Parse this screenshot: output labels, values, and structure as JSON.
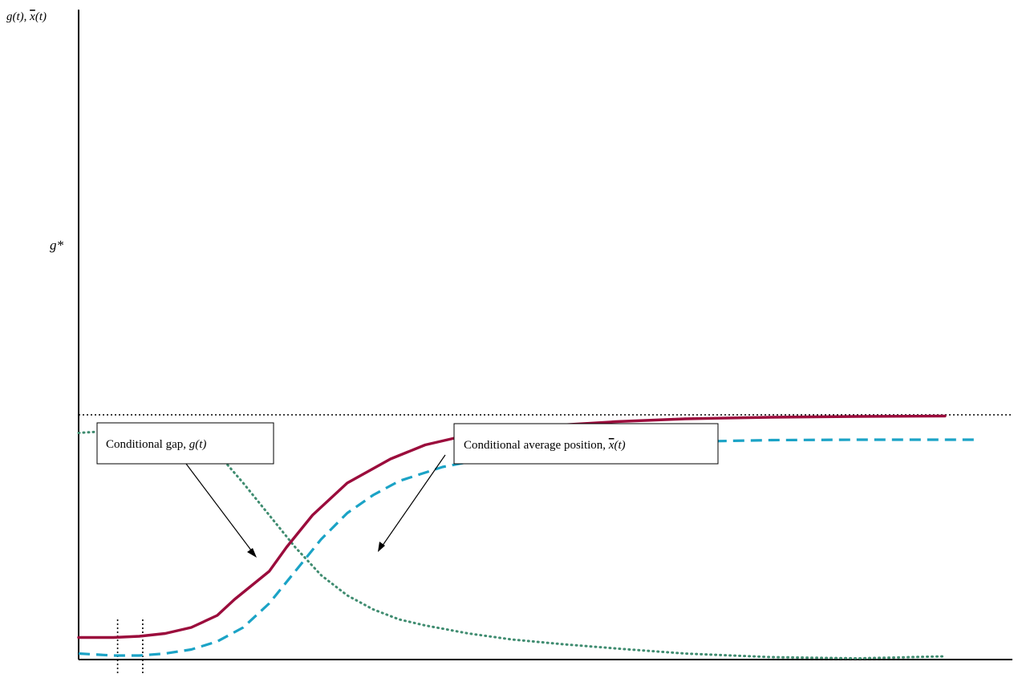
{
  "chart_data": {
    "type": "line",
    "y_axis_label": {
      "g": "g(t)",
      "sep": ", ",
      "xbar": "x",
      "paren": "(t)"
    },
    "g_star_label": "g*",
    "annotations": {
      "gap": {
        "prefix": "Conditional gap, ",
        "italic": "g(t)"
      },
      "avg": {
        "prefix": "Conditional average position, ",
        "xbar": "x",
        "paren": "(t)"
      }
    },
    "xlim": [
      0,
      100
    ],
    "ylim": [
      0,
      100
    ],
    "g_star": 61,
    "t_markers": [
      4.5,
      7.4
    ],
    "grid": false,
    "legend": "none",
    "colors": {
      "gap": "#9b0c3c",
      "avg": "#1ba3c6",
      "dotted": "#3f8c70",
      "axes": "#000000"
    },
    "series": [
      {
        "key": "gap",
        "style": "solid",
        "x": [
          0,
          4,
          7,
          10,
          13,
          16,
          18,
          22,
          24,
          27,
          31,
          36,
          40,
          45,
          50,
          56,
          62,
          70,
          80,
          90,
          100
        ],
        "y": [
          5.5,
          5.5,
          5.8,
          6.5,
          8,
          11,
          15,
          22,
          28,
          36,
          44,
          50,
          53.5,
          56,
          57.5,
          58.5,
          59.3,
          60,
          60.4,
          60.6,
          60.7
        ]
      },
      {
        "key": "avg",
        "style": "dashed",
        "x": [
          0,
          4,
          7,
          10,
          13,
          16,
          19,
          22,
          25,
          28,
          31,
          34,
          37,
          42,
          48,
          55,
          62,
          70,
          80,
          90,
          104
        ],
        "y": [
          1.5,
          1,
          1,
          1.5,
          2.5,
          4.5,
          8,
          14,
          22,
          30,
          36.5,
          41,
          44.5,
          48,
          50.5,
          52.3,
          53.5,
          54.3,
          54.7,
          54.8,
          54.8
        ]
      },
      {
        "key": "dotted",
        "style": "dotted",
        "x": [
          0,
          4,
          7,
          10,
          13,
          16,
          19,
          22,
          25,
          28,
          31,
          34,
          37,
          40,
          45,
          50,
          56,
          63,
          70,
          80,
          90,
          100
        ],
        "y": [
          56.5,
          57,
          57,
          56.5,
          55,
          51.5,
          44,
          36,
          28,
          21,
          16,
          12.5,
          10,
          8.5,
          6.5,
          5,
          3.8,
          2.6,
          1.5,
          0.6,
          0.3,
          0.8
        ]
      }
    ]
  }
}
